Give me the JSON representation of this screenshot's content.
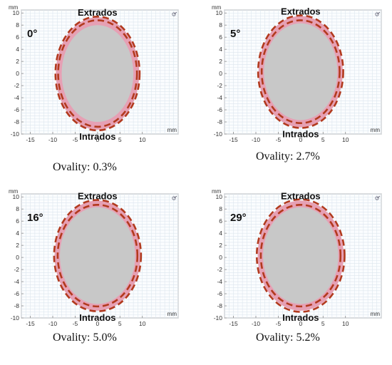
{
  "chart_data": [
    {
      "type": "cross-section",
      "angle_label": "0°",
      "top_label": "Extrados",
      "bottom_label": "Intrados",
      "caption": "Ovality: 0.3%",
      "x_unit": "mm",
      "y_unit": "mm",
      "x_ticks": [
        "-15",
        "-10",
        "-5",
        "0",
        "5",
        "10"
      ],
      "y_ticks": [
        "10",
        "8",
        "6",
        "4",
        "2",
        "0",
        "-2",
        "-4",
        "-6",
        "-8",
        "-10"
      ],
      "xlim": [
        -17,
        18
      ],
      "ylim": [
        -10,
        10.5
      ],
      "grid": true,
      "inner_surface": {
        "cx": 0,
        "cy": 0,
        "rx": 8.0,
        "ry": 8.0
      },
      "outer_surface": {
        "cx": 0,
        "cy": 0,
        "rx": 9.3,
        "ry": 9.3
      },
      "dashed_outlines": [
        {
          "cx": 0,
          "cy": 0,
          "rx": 9.4,
          "ry": 9.4
        },
        {
          "cx": 0,
          "cy": 0,
          "rx": 8.8,
          "ry": 8.8
        }
      ]
    },
    {
      "type": "cross-section",
      "angle_label": "5°",
      "top_label": "Extrados",
      "bottom_label": "Intrados",
      "caption": "Ovality: 2.7%",
      "x_unit": "mm",
      "y_unit": "mm",
      "x_ticks": [
        "-15",
        "-10",
        "-5",
        "0",
        "5",
        "10"
      ],
      "y_ticks": [
        "10",
        "8",
        "6",
        "4",
        "2",
        "0",
        "-2",
        "-4",
        "-6",
        "-8",
        "-10"
      ],
      "xlim": [
        -17,
        18
      ],
      "ylim": [
        -10,
        10.5
      ],
      "grid": true,
      "inner_surface": {
        "cx": 0,
        "cy": 0.3,
        "rx": 8.2,
        "ry": 8.0
      },
      "outer_surface": {
        "cx": 0,
        "cy": 0.3,
        "rx": 9.4,
        "ry": 9.2
      },
      "dashed_outlines": [
        {
          "cx": 0,
          "cy": 0.3,
          "rx": 9.5,
          "ry": 9.3
        },
        {
          "cx": 0,
          "cy": 0.3,
          "rx": 8.7,
          "ry": 8.5
        }
      ]
    },
    {
      "type": "cross-section",
      "angle_label": "16°",
      "top_label": "Extrados",
      "bottom_label": "Intrados",
      "caption": "Ovality: 5.0%",
      "x_unit": "mm",
      "y_unit": "mm",
      "x_ticks": [
        "-15",
        "-10",
        "-5",
        "0",
        "5",
        "10"
      ],
      "y_ticks": [
        "10",
        "8",
        "6",
        "4",
        "2",
        "0",
        "-2",
        "-4",
        "-6",
        "-8",
        "-10"
      ],
      "xlim": [
        -17,
        18
      ],
      "ylim": [
        -10,
        10.5
      ],
      "grid": true,
      "inner_surface": {
        "cx": 0,
        "cy": 0.3,
        "rx": 8.4,
        "ry": 8.0
      },
      "outer_surface": {
        "cx": 0,
        "cy": 0.3,
        "rx": 9.6,
        "ry": 9.1
      },
      "dashed_outlines": [
        {
          "cx": 0,
          "cy": 0.3,
          "rx": 9.7,
          "ry": 9.2
        },
        {
          "cx": 0,
          "cy": 0.3,
          "rx": 8.9,
          "ry": 8.4
        }
      ]
    },
    {
      "type": "cross-section",
      "angle_label": "29°",
      "top_label": "Extrados",
      "bottom_label": "Intrados",
      "caption": "Ovality: 5.2%",
      "x_unit": "mm",
      "y_unit": "mm",
      "x_ticks": [
        "-15",
        "-10",
        "-5",
        "0",
        "5",
        "10"
      ],
      "y_ticks": [
        "10",
        "8",
        "6",
        "4",
        "2",
        "0",
        "-2",
        "-4",
        "-6",
        "-8",
        "-10"
      ],
      "xlim": [
        -17,
        18
      ],
      "ylim": [
        -10,
        10.5
      ],
      "grid": true,
      "inner_surface": {
        "cx": 0,
        "cy": 0.3,
        "rx": 8.4,
        "ry": 8.0
      },
      "outer_surface": {
        "cx": 0,
        "cy": 0.3,
        "rx": 9.6,
        "ry": 9.1
      },
      "dashed_outlines": [
        {
          "cx": 0,
          "cy": 0.3,
          "rx": 9.8,
          "ry": 9.3
        },
        {
          "cx": 0,
          "cy": 0.3,
          "rx": 8.9,
          "ry": 8.4
        }
      ]
    }
  ],
  "colors": {
    "grid": "#dde6ee",
    "plot_bg": "#fbfdff",
    "axis": "#8c8c8c",
    "lumen_fill": "#c8c8c8",
    "wall_fill": "#e6a0b4",
    "dashed_line": "#b23a1e"
  },
  "icons": {
    "corner": "axis-triad-icon"
  }
}
